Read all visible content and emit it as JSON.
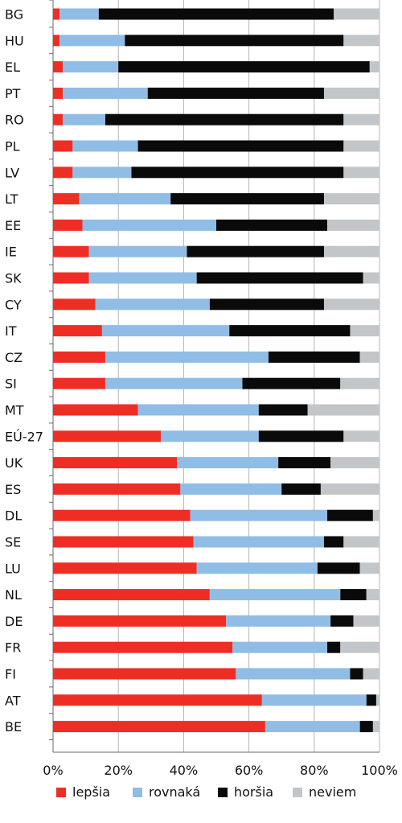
{
  "chart_data": {
    "type": "bar",
    "stacked": true,
    "orientation": "horizontal",
    "percent_stacked": true,
    "categories": [
      "BG",
      "HU",
      "EL",
      "PT",
      "RO",
      "PL",
      "LV",
      "LT",
      "EE",
      "IE",
      "SK",
      "CY",
      "IT",
      "CZ",
      "SI",
      "MT",
      "EÚ-27",
      "UK",
      "ES",
      "DL",
      "SE",
      "LU",
      "NL",
      "DE",
      "FR",
      "FI",
      "AT",
      "BE"
    ],
    "series": [
      {
        "name": "lepšia",
        "color": "#ee2e24",
        "values": [
          2,
          2,
          3,
          3,
          3,
          6,
          6,
          8,
          9,
          11,
          11,
          13,
          15,
          16,
          16,
          26,
          33,
          38,
          39,
          42,
          43,
          44,
          48,
          53,
          55,
          56,
          64,
          65
        ]
      },
      {
        "name": "rovnaká",
        "color": "#8fbde6",
        "values": [
          12,
          20,
          17,
          26,
          13,
          20,
          18,
          28,
          41,
          30,
          33,
          35,
          39,
          50,
          42,
          37,
          30,
          31,
          31,
          42,
          40,
          37,
          40,
          32,
          29,
          35,
          32,
          29
        ]
      },
      {
        "name": "horšia",
        "color": "#0a0a0a",
        "values": [
          72,
          67,
          77,
          54,
          73,
          63,
          65,
          47,
          34,
          42,
          51,
          35,
          37,
          28,
          30,
          15,
          26,
          16,
          12,
          14,
          6,
          13,
          8,
          7,
          4,
          4,
          3,
          4
        ]
      },
      {
        "name": "neviem",
        "color": "#c3c6c9",
        "values": [
          14,
          11,
          3,
          17,
          11,
          11,
          11,
          17,
          16,
          17,
          5,
          17,
          9,
          6,
          12,
          22,
          11,
          15,
          18,
          2,
          11,
          6,
          4,
          8,
          12,
          5,
          1,
          2
        ]
      }
    ],
    "xlim": [
      0,
      100
    ],
    "x_tick_labels": [
      "0%",
      "20%",
      "40%",
      "60%",
      "80%",
      "100%"
    ],
    "grid": true,
    "legend_position": "bottom"
  }
}
